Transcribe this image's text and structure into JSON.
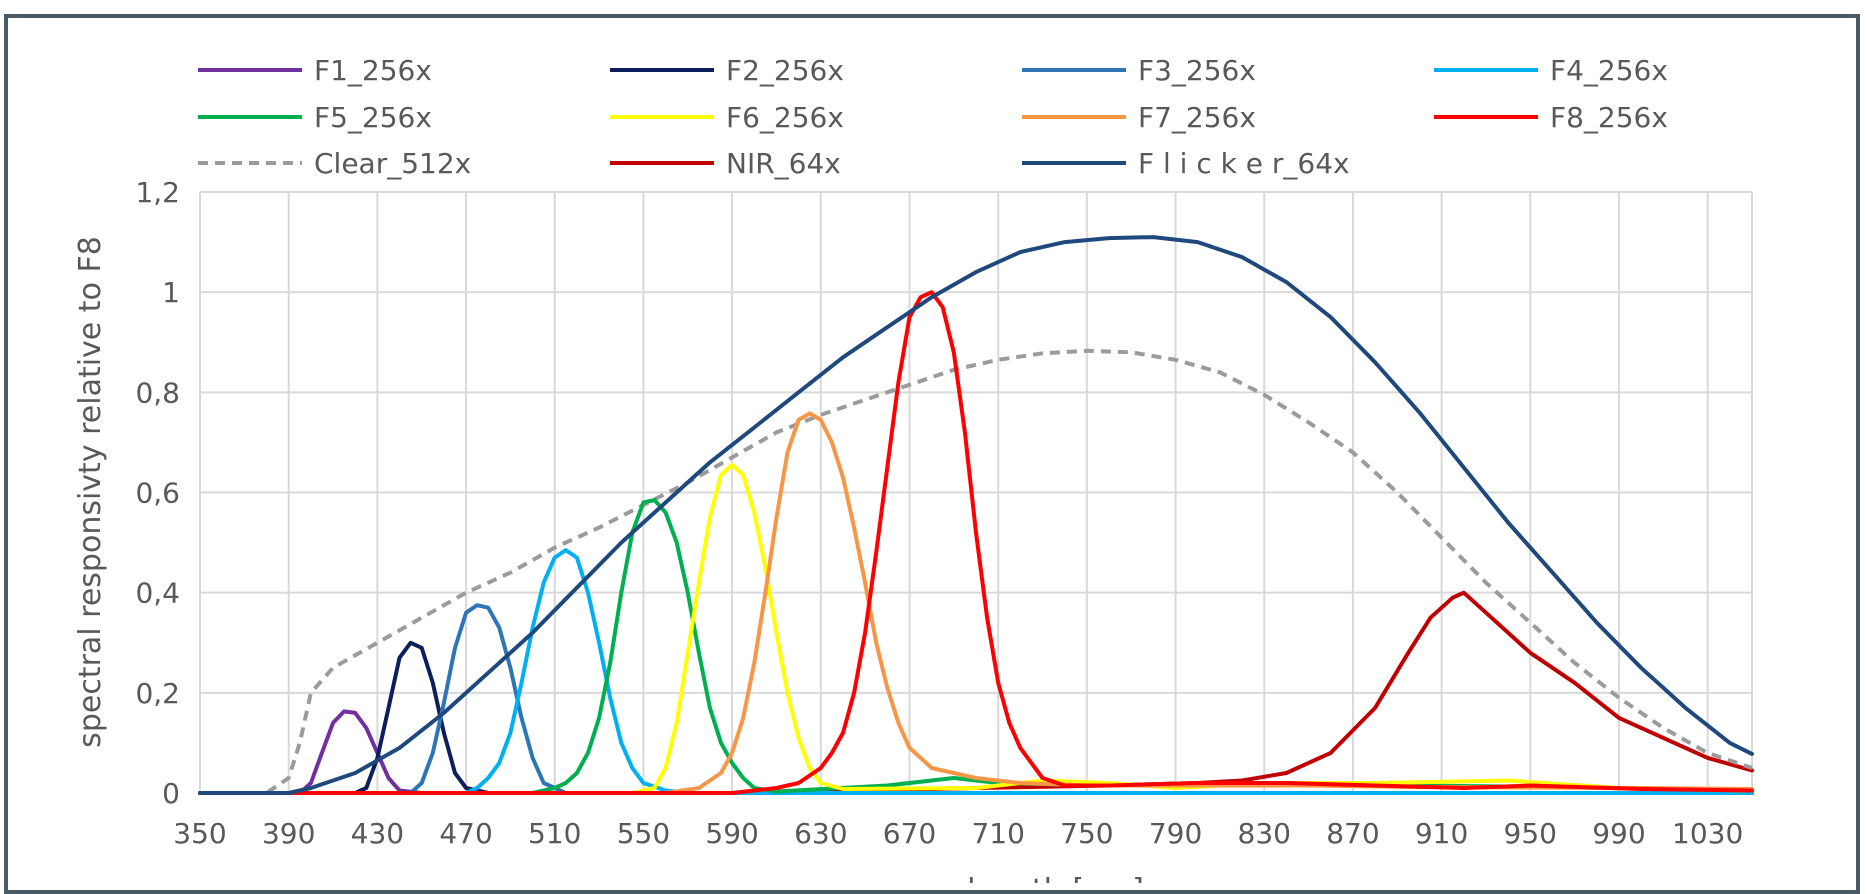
{
  "chart_data": {
    "type": "line",
    "title": "",
    "ylabel": "spectral responsivty relative to F8",
    "xlabel": "wavelength [nm]",
    "xlim": [
      350,
      1050
    ],
    "ylim": [
      0,
      1.2
    ],
    "x_ticks": [
      "350",
      "390",
      "430",
      "470",
      "510",
      "550",
      "590",
      "630",
      "670",
      "710",
      "750",
      "790",
      "830",
      "870",
      "910",
      "950",
      "990",
      "1030"
    ],
    "y_ticks": [
      "0",
      "0,2",
      "0,4",
      "0,6",
      "0,8",
      "1",
      "1,2"
    ],
    "grid": true,
    "legend_position": "top",
    "series": [
      {
        "name": "F1_256x",
        "color": "#7030a0",
        "dash": false,
        "points": [
          [
            350,
            0
          ],
          [
            395,
            0
          ],
          [
            400,
            0.02
          ],
          [
            405,
            0.08
          ],
          [
            410,
            0.14
          ],
          [
            415,
            0.163
          ],
          [
            420,
            0.16
          ],
          [
            425,
            0.13
          ],
          [
            430,
            0.08
          ],
          [
            435,
            0.03
          ],
          [
            440,
            0.005
          ],
          [
            450,
            0
          ],
          [
            1050,
            0
          ]
        ]
      },
      {
        "name": "F2_256x",
        "color": "#0c1f5c",
        "dash": false,
        "points": [
          [
            350,
            0
          ],
          [
            420,
            0
          ],
          [
            425,
            0.01
          ],
          [
            430,
            0.07
          ],
          [
            435,
            0.17
          ],
          [
            440,
            0.27
          ],
          [
            445,
            0.3
          ],
          [
            450,
            0.29
          ],
          [
            455,
            0.22
          ],
          [
            460,
            0.12
          ],
          [
            465,
            0.04
          ],
          [
            470,
            0.01
          ],
          [
            480,
            0
          ],
          [
            1050,
            0
          ]
        ]
      },
      {
        "name": "F3_256x",
        "color": "#2e75b6",
        "dash": false,
        "points": [
          [
            350,
            0
          ],
          [
            445,
            0
          ],
          [
            450,
            0.02
          ],
          [
            455,
            0.08
          ],
          [
            460,
            0.18
          ],
          [
            465,
            0.29
          ],
          [
            470,
            0.36
          ],
          [
            475,
            0.375
          ],
          [
            480,
            0.37
          ],
          [
            485,
            0.33
          ],
          [
            490,
            0.25
          ],
          [
            495,
            0.15
          ],
          [
            500,
            0.07
          ],
          [
            505,
            0.02
          ],
          [
            515,
            0
          ],
          [
            1050,
            0
          ]
        ]
      },
      {
        "name": "F4_256x",
        "color": "#00b0f0",
        "dash": false,
        "points": [
          [
            350,
            0
          ],
          [
            470,
            0
          ],
          [
            475,
            0.01
          ],
          [
            480,
            0.03
          ],
          [
            485,
            0.06
          ],
          [
            490,
            0.12
          ],
          [
            495,
            0.22
          ],
          [
            500,
            0.33
          ],
          [
            505,
            0.42
          ],
          [
            510,
            0.47
          ],
          [
            515,
            0.485
          ],
          [
            520,
            0.47
          ],
          [
            525,
            0.4
          ],
          [
            530,
            0.3
          ],
          [
            535,
            0.19
          ],
          [
            540,
            0.1
          ],
          [
            545,
            0.05
          ],
          [
            550,
            0.02
          ],
          [
            560,
            0.005
          ],
          [
            570,
            0
          ],
          [
            1050,
            0
          ]
        ]
      },
      {
        "name": "F5_256x",
        "color": "#00b050",
        "dash": false,
        "points": [
          [
            350,
            0
          ],
          [
            500,
            0
          ],
          [
            510,
            0.01
          ],
          [
            515,
            0.02
          ],
          [
            520,
            0.04
          ],
          [
            525,
            0.08
          ],
          [
            530,
            0.15
          ],
          [
            535,
            0.26
          ],
          [
            540,
            0.4
          ],
          [
            545,
            0.52
          ],
          [
            550,
            0.58
          ],
          [
            555,
            0.585
          ],
          [
            560,
            0.56
          ],
          [
            565,
            0.5
          ],
          [
            570,
            0.4
          ],
          [
            575,
            0.28
          ],
          [
            580,
            0.17
          ],
          [
            585,
            0.1
          ],
          [
            590,
            0.06
          ],
          [
            595,
            0.03
          ],
          [
            600,
            0.01
          ],
          [
            610,
            0.003
          ],
          [
            660,
            0.015
          ],
          [
            690,
            0.03
          ],
          [
            710,
            0.02
          ],
          [
            760,
            0.015
          ],
          [
            800,
            0.02
          ],
          [
            900,
            0.015
          ],
          [
            960,
            0.012
          ],
          [
            1050,
            0.005
          ]
        ]
      },
      {
        "name": "F6_256x",
        "color": "#ffff00",
        "dash": false,
        "points": [
          [
            350,
            0
          ],
          [
            545,
            0
          ],
          [
            555,
            0.01
          ],
          [
            560,
            0.05
          ],
          [
            565,
            0.14
          ],
          [
            570,
            0.28
          ],
          [
            575,
            0.42
          ],
          [
            580,
            0.55
          ],
          [
            585,
            0.635
          ],
          [
            590,
            0.655
          ],
          [
            595,
            0.635
          ],
          [
            600,
            0.56
          ],
          [
            605,
            0.45
          ],
          [
            610,
            0.32
          ],
          [
            615,
            0.2
          ],
          [
            620,
            0.11
          ],
          [
            625,
            0.05
          ],
          [
            630,
            0.02
          ],
          [
            640,
            0.008
          ],
          [
            700,
            0.01
          ],
          [
            730,
            0.025
          ],
          [
            760,
            0.02
          ],
          [
            790,
            0.01
          ],
          [
            830,
            0.02
          ],
          [
            880,
            0.02
          ],
          [
            940,
            0.025
          ],
          [
            990,
            0.01
          ],
          [
            1050,
            0.005
          ]
        ]
      },
      {
        "name": "F7_256x",
        "color": "#f79646",
        "dash": false,
        "points": [
          [
            350,
            0
          ],
          [
            560,
            0
          ],
          [
            575,
            0.01
          ],
          [
            585,
            0.04
          ],
          [
            590,
            0.08
          ],
          [
            595,
            0.15
          ],
          [
            600,
            0.26
          ],
          [
            605,
            0.4
          ],
          [
            610,
            0.55
          ],
          [
            615,
            0.68
          ],
          [
            620,
            0.745
          ],
          [
            625,
            0.758
          ],
          [
            630,
            0.745
          ],
          [
            635,
            0.7
          ],
          [
            640,
            0.63
          ],
          [
            645,
            0.53
          ],
          [
            650,
            0.42
          ],
          [
            655,
            0.3
          ],
          [
            660,
            0.21
          ],
          [
            665,
            0.14
          ],
          [
            670,
            0.09
          ],
          [
            675,
            0.07
          ],
          [
            680,
            0.05
          ],
          [
            690,
            0.04
          ],
          [
            700,
            0.03
          ],
          [
            720,
            0.02
          ],
          [
            750,
            0.015
          ],
          [
            800,
            0.015
          ],
          [
            850,
            0.015
          ],
          [
            900,
            0.012
          ],
          [
            1000,
            0.01
          ],
          [
            1050,
            0.008
          ]
        ]
      },
      {
        "name": "F8_256x",
        "color": "#ff0000",
        "dash": false,
        "points": [
          [
            350,
            0
          ],
          [
            590,
            0
          ],
          [
            600,
            0.005
          ],
          [
            610,
            0.01
          ],
          [
            620,
            0.02
          ],
          [
            630,
            0.05
          ],
          [
            635,
            0.08
          ],
          [
            640,
            0.12
          ],
          [
            645,
            0.2
          ],
          [
            650,
            0.32
          ],
          [
            655,
            0.48
          ],
          [
            660,
            0.65
          ],
          [
            665,
            0.82
          ],
          [
            670,
            0.95
          ],
          [
            675,
            0.99
          ],
          [
            680,
            1.0
          ],
          [
            685,
            0.97
          ],
          [
            690,
            0.88
          ],
          [
            695,
            0.72
          ],
          [
            700,
            0.52
          ],
          [
            705,
            0.35
          ],
          [
            710,
            0.22
          ],
          [
            715,
            0.14
          ],
          [
            720,
            0.09
          ],
          [
            725,
            0.06
          ],
          [
            730,
            0.03
          ],
          [
            740,
            0.015
          ],
          [
            760,
            0.015
          ],
          [
            800,
            0.02
          ],
          [
            840,
            0.02
          ],
          [
            880,
            0.015
          ],
          [
            920,
            0.01
          ],
          [
            950,
            0.015
          ],
          [
            1000,
            0.008
          ],
          [
            1050,
            0.005
          ]
        ]
      },
      {
        "name": "Clear_512x",
        "color": "#9b9b9b",
        "dash": true,
        "points": [
          [
            350,
            0
          ],
          [
            380,
            0
          ],
          [
            390,
            0.03
          ],
          [
            395,
            0.1
          ],
          [
            400,
            0.2
          ],
          [
            410,
            0.25
          ],
          [
            430,
            0.3
          ],
          [
            450,
            0.35
          ],
          [
            470,
            0.4
          ],
          [
            490,
            0.44
          ],
          [
            510,
            0.49
          ],
          [
            530,
            0.53
          ],
          [
            550,
            0.575
          ],
          [
            570,
            0.62
          ],
          [
            590,
            0.67
          ],
          [
            610,
            0.72
          ],
          [
            630,
            0.755
          ],
          [
            650,
            0.785
          ],
          [
            670,
            0.815
          ],
          [
            690,
            0.845
          ],
          [
            710,
            0.865
          ],
          [
            730,
            0.878
          ],
          [
            750,
            0.883
          ],
          [
            770,
            0.88
          ],
          [
            790,
            0.865
          ],
          [
            810,
            0.84
          ],
          [
            830,
            0.795
          ],
          [
            850,
            0.74
          ],
          [
            870,
            0.68
          ],
          [
            890,
            0.6
          ],
          [
            910,
            0.51
          ],
          [
            930,
            0.42
          ],
          [
            950,
            0.34
          ],
          [
            970,
            0.26
          ],
          [
            990,
            0.19
          ],
          [
            1010,
            0.13
          ],
          [
            1030,
            0.08
          ],
          [
            1050,
            0.05
          ]
        ]
      },
      {
        "name": "NIR_64x",
        "color": "#c00000",
        "dash": false,
        "points": [
          [
            350,
            0
          ],
          [
            600,
            0
          ],
          [
            650,
            0.005
          ],
          [
            700,
            0.01
          ],
          [
            760,
            0.015
          ],
          [
            800,
            0.02
          ],
          [
            820,
            0.025
          ],
          [
            840,
            0.04
          ],
          [
            860,
            0.08
          ],
          [
            880,
            0.17
          ],
          [
            895,
            0.28
          ],
          [
            905,
            0.35
          ],
          [
            910,
            0.37
          ],
          [
            915,
            0.39
          ],
          [
            920,
            0.4
          ],
          [
            925,
            0.38
          ],
          [
            935,
            0.34
          ],
          [
            950,
            0.28
          ],
          [
            970,
            0.22
          ],
          [
            990,
            0.15
          ],
          [
            1010,
            0.11
          ],
          [
            1030,
            0.07
          ],
          [
            1050,
            0.045
          ]
        ]
      },
      {
        "name": "F l i c k e r_64x",
        "color": "#1f497d",
        "dash": false,
        "points": [
          [
            350,
            0
          ],
          [
            390,
            0
          ],
          [
            400,
            0.01
          ],
          [
            420,
            0.04
          ],
          [
            440,
            0.09
          ],
          [
            460,
            0.16
          ],
          [
            480,
            0.24
          ],
          [
            500,
            0.32
          ],
          [
            520,
            0.41
          ],
          [
            540,
            0.5
          ],
          [
            560,
            0.58
          ],
          [
            580,
            0.66
          ],
          [
            600,
            0.73
          ],
          [
            620,
            0.8
          ],
          [
            640,
            0.87
          ],
          [
            660,
            0.93
          ],
          [
            680,
            0.99
          ],
          [
            700,
            1.04
          ],
          [
            720,
            1.08
          ],
          [
            740,
            1.1
          ],
          [
            760,
            1.108
          ],
          [
            780,
            1.11
          ],
          [
            800,
            1.1
          ],
          [
            820,
            1.07
          ],
          [
            840,
            1.02
          ],
          [
            860,
            0.95
          ],
          [
            880,
            0.86
          ],
          [
            900,
            0.76
          ],
          [
            920,
            0.65
          ],
          [
            940,
            0.54
          ],
          [
            960,
            0.44
          ],
          [
            980,
            0.34
          ],
          [
            1000,
            0.25
          ],
          [
            1020,
            0.17
          ],
          [
            1040,
            0.1
          ],
          [
            1050,
            0.078
          ]
        ]
      }
    ]
  }
}
